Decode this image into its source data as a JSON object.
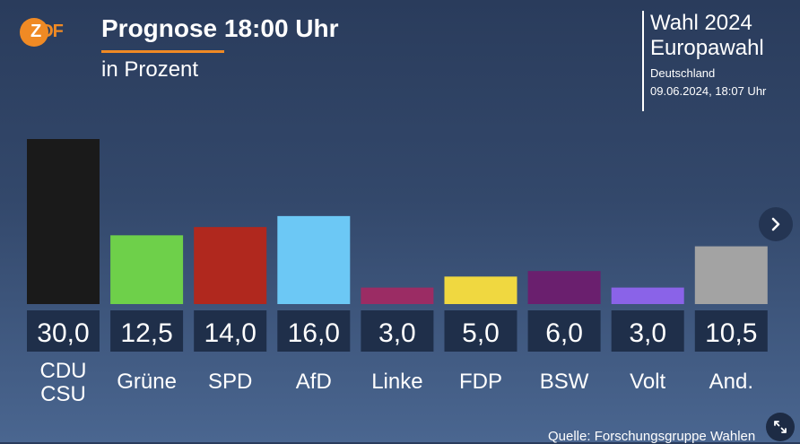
{
  "brand": {
    "logo_text": "ZDF"
  },
  "header": {
    "title": "Prognose 18:00 Uhr",
    "subtitle": "in Prozent"
  },
  "election": {
    "title": "Wahl 2024",
    "name": "Europawahl",
    "region": "Deutschland",
    "timestamp": "09.06.2024, 18:07 Uhr"
  },
  "footer": {
    "source": "Quelle: Forschungsgruppe Wahlen"
  },
  "colors": {
    "accent": "#f08a24",
    "label_box": "#1f2f4a"
  },
  "icons": {
    "next": "chevron-right-icon",
    "expand": "expand-icon"
  },
  "chart_data": {
    "type": "bar",
    "title": "Prognose 18:00 Uhr",
    "subtitle": "in Prozent",
    "categories": [
      [
        "CDU",
        "CSU"
      ],
      [
        "Grüne"
      ],
      [
        "SPD"
      ],
      [
        "AfD"
      ],
      [
        "Linke"
      ],
      [
        "FDP"
      ],
      [
        "BSW"
      ],
      [
        "Volt"
      ],
      [
        "And."
      ]
    ],
    "value_labels": [
      "30,0",
      "12,5",
      "14,0",
      "16,0",
      "3,0",
      "5,0",
      "6,0",
      "3,0",
      "10,5"
    ],
    "values": [
      30.0,
      12.5,
      14.0,
      16.0,
      3.0,
      5.0,
      6.0,
      3.0,
      10.5
    ],
    "colors": [
      "#1a1a1a",
      "#6ed04a",
      "#b0281e",
      "#6cc8f5",
      "#9b2c64",
      "#f0d840",
      "#6a1f6e",
      "#8a63e8",
      "#a3a3a3"
    ],
    "ylim": [
      0,
      30
    ],
    "grid": false,
    "legend": false
  }
}
